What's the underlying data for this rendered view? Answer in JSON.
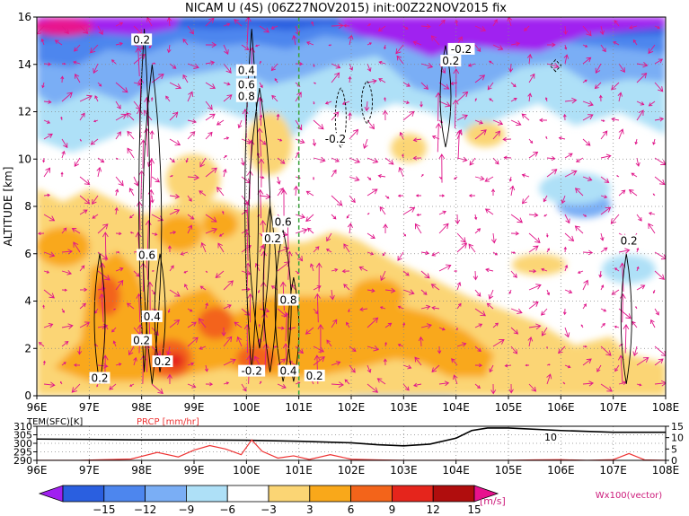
{
  "chart_data": {
    "type": "heatmap",
    "title": "NICAM U (4S) (06Z27NOV2015) init:00Z22NOV2015 fix",
    "main_panel": {
      "ylabel": "ALTITUDE [km]",
      "xlim": [
        96,
        108
      ],
      "ylim": [
        0,
        16
      ],
      "x_ticks": [
        "96E",
        "97E",
        "98E",
        "99E",
        "100E",
        "101E",
        "102E",
        "103E",
        "104E",
        "105E",
        "106E",
        "107E",
        "108E"
      ],
      "y_ticks": [
        "0",
        "2",
        "4",
        "6",
        "8",
        "10",
        "12",
        "14",
        "16"
      ],
      "grid": true,
      "marked_longitude": 101,
      "shading_units": "m/s",
      "contour_labels": [
        {
          "text": "0.2",
          "x": 98.0,
          "y": 15.0
        },
        {
          "text": "0.4",
          "x": 100.0,
          "y": 13.7
        },
        {
          "text": "0.6",
          "x": 100.0,
          "y": 13.1
        },
        {
          "text": "0.8",
          "x": 100.0,
          "y": 12.6
        },
        {
          "text": "0.6",
          "x": 98.1,
          "y": 5.9
        },
        {
          "text": "0.4",
          "x": 98.2,
          "y": 3.3
        },
        {
          "text": "0.2",
          "x": 98.0,
          "y": 2.3
        },
        {
          "text": "0.2",
          "x": 98.4,
          "y": 1.4
        },
        {
          "text": "0.2",
          "x": 97.2,
          "y": 0.7
        },
        {
          "text": "0.6",
          "x": 100.7,
          "y": 7.3
        },
        {
          "text": "0.2",
          "x": 100.5,
          "y": 6.6
        },
        {
          "text": "0.8",
          "x": 100.8,
          "y": 4.0
        },
        {
          "text": "-0.2",
          "x": 100.1,
          "y": 1.0
        },
        {
          "text": "0.4",
          "x": 100.8,
          "y": 1.0
        },
        {
          "text": "0.2",
          "x": 101.3,
          "y": 0.8
        },
        {
          "text": "-0.2",
          "x": 101.7,
          "y": 10.8
        },
        {
          "text": "-0.2",
          "x": 104.1,
          "y": 14.6
        },
        {
          "text": "0.2",
          "x": 103.9,
          "y": 14.1
        },
        {
          "text": "0.2",
          "x": 107.3,
          "y": 6.5
        }
      ]
    },
    "sub_panel": {
      "series": [
        {
          "name": "TEM(SFC)[K]",
          "color": "#000000",
          "axis": "left",
          "ylim": [
            290,
            310
          ],
          "y_ticks": [
            "290",
            "295",
            "300",
            "305",
            "310"
          ],
          "x": [
            96,
            97,
            98,
            99,
            100,
            101,
            102,
            102.5,
            103,
            103.5,
            104,
            104.3,
            104.6,
            105,
            106,
            107,
            108
          ],
          "values": [
            302.5,
            302.3,
            302,
            302,
            301.8,
            301.2,
            300.3,
            299.2,
            298.5,
            299.5,
            303,
            307.5,
            309,
            309,
            307.5,
            306.5,
            306.5
          ]
        },
        {
          "name": "PRCP [mm/hr]",
          "color": "#ee3333",
          "axis": "right",
          "ylim": [
            0,
            15
          ],
          "y_ticks": [
            "0",
            "5",
            "10",
            "15"
          ],
          "x": [
            96,
            96.8,
            97.3,
            97.8,
            98.3,
            98.7,
            99,
            99.3,
            99.6,
            99.9,
            100.1,
            100.3,
            100.6,
            100.9,
            101.2,
            101.6,
            102,
            102.5,
            103,
            103.5,
            104,
            104.5,
            105,
            105.5,
            106,
            106.5,
            107,
            107.3,
            107.6,
            108
          ],
          "values": [
            0,
            0,
            0.3,
            0.6,
            3.5,
            1.5,
            4.5,
            6.5,
            5,
            2.5,
            9,
            4,
            1,
            2,
            0.4,
            2.5,
            0.5,
            0.2,
            0,
            0,
            0,
            0,
            0,
            0.2,
            0.3,
            0,
            0.3,
            3,
            0.2,
            0
          ]
        }
      ],
      "annotation": "10"
    },
    "colorbar": {
      "values": [
        -15,
        -12,
        -9,
        -6,
        -3,
        3,
        6,
        9,
        12,
        15
      ],
      "labels": [
        "−15",
        "−12",
        "−9",
        "−6",
        "−3",
        "3",
        "6",
        "9",
        "12",
        "15"
      ],
      "colors": [
        "#a020f0",
        "#2a5fe0",
        "#4d86ee",
        "#7aaef5",
        "#aee0f7",
        "#ffffff",
        "#fbd574",
        "#f9a81a",
        "#f3641a",
        "#e5251c",
        "#b00d0d",
        "#e8128e"
      ],
      "units": "[m/s]",
      "vector_label": "Wx100(vector)"
    }
  }
}
